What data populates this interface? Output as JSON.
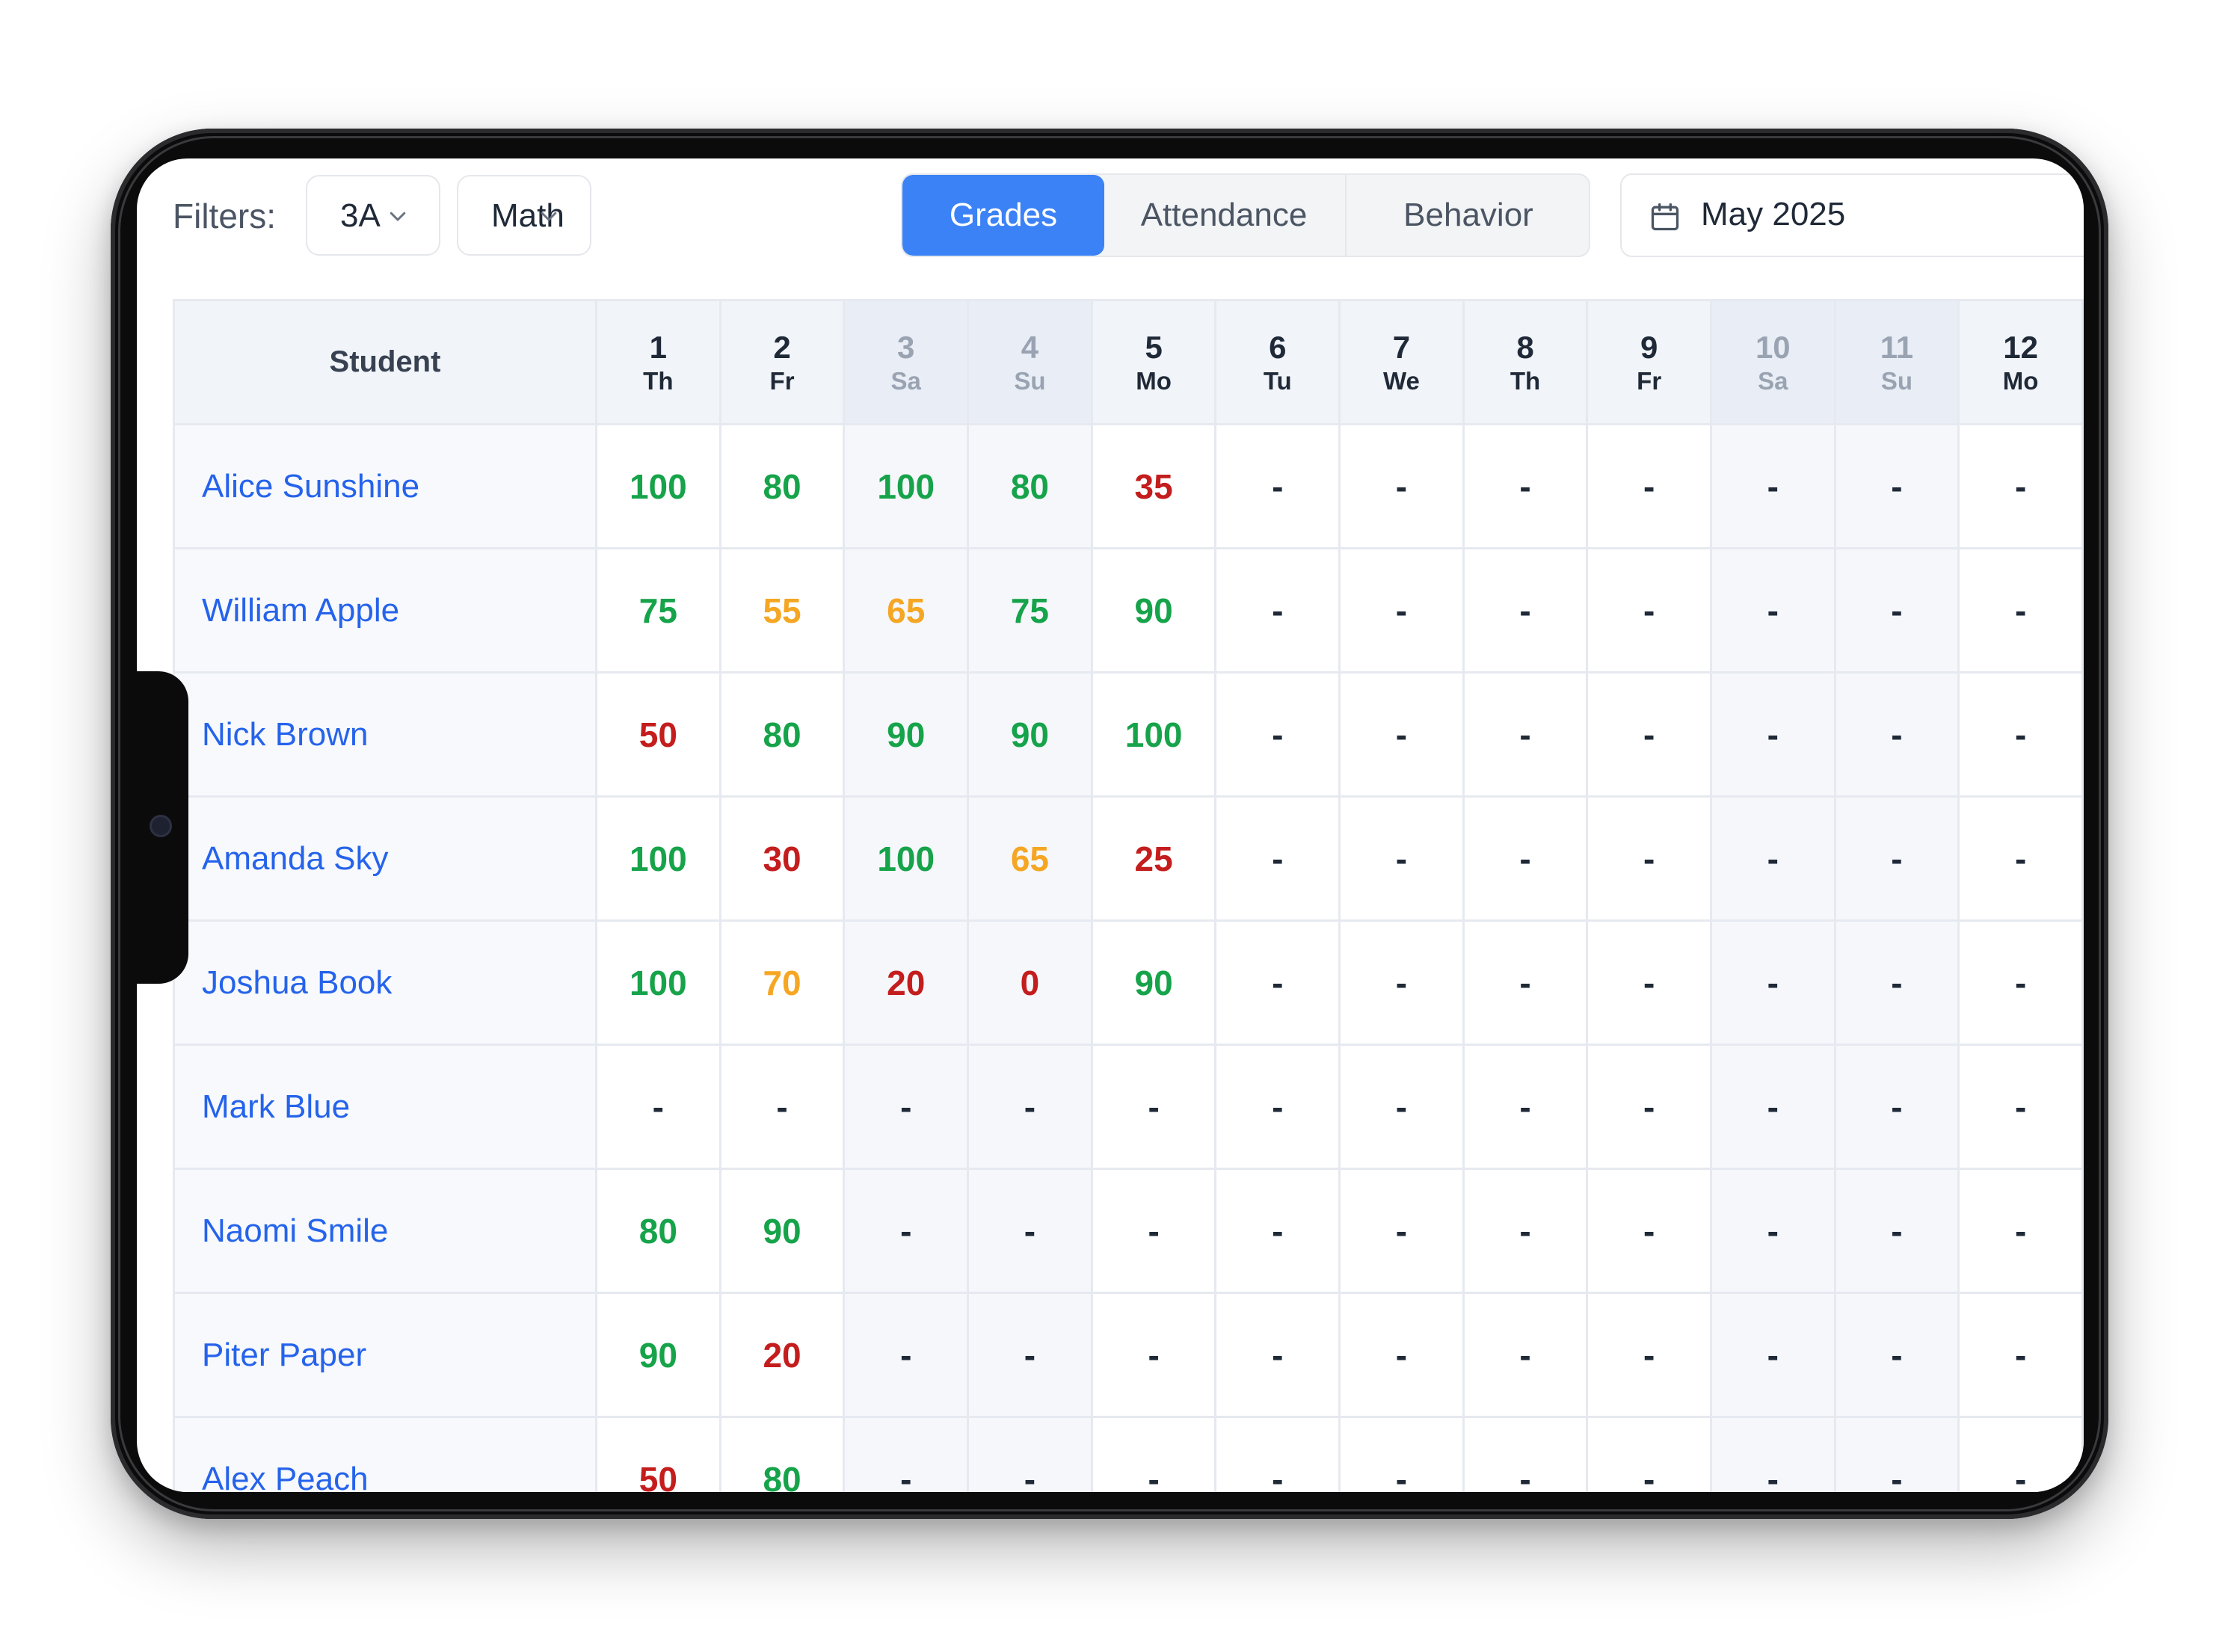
{
  "toolbar": {
    "filters_label": "Filters:",
    "class_select": {
      "value": "3A",
      "icon": "chevron-down-icon"
    },
    "subject_select": {
      "value": "Math",
      "icon": "chevron-down-icon"
    },
    "view_tabs": [
      {
        "label": "Grades",
        "active": true
      },
      {
        "label": "Attendance",
        "active": false
      },
      {
        "label": "Behavior",
        "active": false
      }
    ],
    "date_picker": {
      "value": "May 2025",
      "icon": "calendar-icon"
    }
  },
  "colors": {
    "accent": "#3b82f6",
    "name_link": "#2563eb",
    "grade_high": "#16a34a",
    "grade_mid": "#f5a623",
    "grade_low": "#c41d1d"
  },
  "table": {
    "student_header": "Student",
    "days": [
      {
        "num": "1",
        "wd": "Th",
        "weekend": false
      },
      {
        "num": "2",
        "wd": "Fr",
        "weekend": false
      },
      {
        "num": "3",
        "wd": "Sa",
        "weekend": true
      },
      {
        "num": "4",
        "wd": "Su",
        "weekend": true
      },
      {
        "num": "5",
        "wd": "Mo",
        "weekend": false
      },
      {
        "num": "6",
        "wd": "Tu",
        "weekend": false
      },
      {
        "num": "7",
        "wd": "We",
        "weekend": false
      },
      {
        "num": "8",
        "wd": "Th",
        "weekend": false
      },
      {
        "num": "9",
        "wd": "Fr",
        "weekend": false
      },
      {
        "num": "10",
        "wd": "Sa",
        "weekend": true
      },
      {
        "num": "11",
        "wd": "Su",
        "weekend": true
      },
      {
        "num": "12",
        "wd": "Mo",
        "weekend": false
      }
    ],
    "rows": [
      {
        "name": "Alice Sunshine",
        "grades": [
          "100",
          "80",
          "100",
          "80",
          "35",
          "-",
          "-",
          "-",
          "-",
          "-",
          "-",
          "-"
        ]
      },
      {
        "name": "William Apple",
        "grades": [
          "75",
          "55",
          "65",
          "75",
          "90",
          "-",
          "-",
          "-",
          "-",
          "-",
          "-",
          "-"
        ]
      },
      {
        "name": "Nick Brown",
        "grades": [
          "50",
          "80",
          "90",
          "90",
          "100",
          "-",
          "-",
          "-",
          "-",
          "-",
          "-",
          "-"
        ]
      },
      {
        "name": "Amanda Sky",
        "grades": [
          "100",
          "30",
          "100",
          "65",
          "25",
          "-",
          "-",
          "-",
          "-",
          "-",
          "-",
          "-"
        ]
      },
      {
        "name": "Joshua Book",
        "grades": [
          "100",
          "70",
          "20",
          "0",
          "90",
          "-",
          "-",
          "-",
          "-",
          "-",
          "-",
          "-"
        ]
      },
      {
        "name": "Mark Blue",
        "grades": [
          "-",
          "-",
          "-",
          "-",
          "-",
          "-",
          "-",
          "-",
          "-",
          "-",
          "-",
          "-"
        ]
      },
      {
        "name": "Naomi Smile",
        "grades": [
          "80",
          "90",
          "-",
          "-",
          "-",
          "-",
          "-",
          "-",
          "-",
          "-",
          "-",
          "-"
        ]
      },
      {
        "name": "Piter Paper",
        "grades": [
          "90",
          "20",
          "-",
          "-",
          "-",
          "-",
          "-",
          "-",
          "-",
          "-",
          "-",
          "-"
        ]
      },
      {
        "name": "Alex Peach",
        "grades": [
          "50",
          "80",
          "-",
          "-",
          "-",
          "-",
          "-",
          "-",
          "-",
          "-",
          "-",
          "-"
        ]
      }
    ]
  }
}
